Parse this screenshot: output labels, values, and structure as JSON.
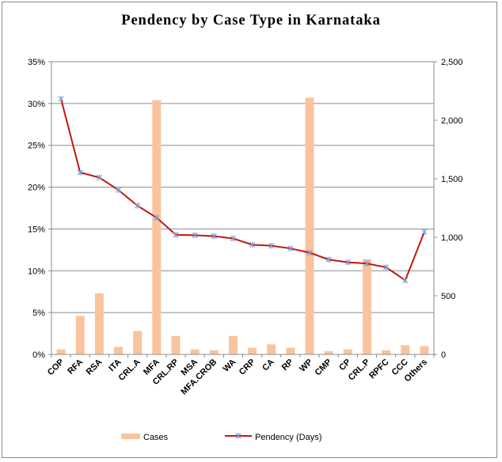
{
  "chart_data": {
    "type": "bar",
    "title": "Pendency by Case Type in Karnataka",
    "categories": [
      "COP",
      "RFA",
      "RSA",
      "ITA",
      "CRL.A",
      "MFA",
      "CRL.RP",
      "MSA",
      "MFA.CROB",
      "WA",
      "CRP",
      "CA",
      "RP",
      "WP",
      "CMP",
      "CP",
      "CRL.P",
      "RPFC",
      "CCC",
      "Others"
    ],
    "y_left": {
      "ticks": [
        "0%",
        "5%",
        "10%",
        "15%",
        "20%",
        "25%",
        "30%",
        "35%"
      ],
      "min": 0,
      "max": 35
    },
    "y_right": {
      "ticks": [
        "0",
        "500",
        "1,000",
        "1,500",
        "2,000",
        "2,500"
      ],
      "min": 0,
      "max": 2500
    },
    "series": [
      {
        "name": "Cases",
        "type": "bar",
        "axis": "left",
        "color": "#f9c49d",
        "values": [
          0.6,
          4.6,
          7.3,
          0.9,
          2.8,
          30.4,
          2.2,
          0.6,
          0.5,
          2.2,
          0.8,
          1.2,
          0.8,
          30.7,
          0.4,
          0.6,
          11.4,
          0.5,
          1.1,
          1.0
        ]
      },
      {
        "name": "Pendency (Days)",
        "type": "line",
        "axis": "right",
        "color": "#c0170f",
        "marker_color": "#7f9fd6",
        "values": [
          2182,
          1554,
          1511,
          1404,
          1270,
          1168,
          1022,
          1018,
          1010,
          990,
          937,
          928,
          905,
          869,
          810,
          786,
          776,
          744,
          633,
          1046
        ]
      }
    ],
    "grid": true,
    "legend_position": "bottom"
  }
}
